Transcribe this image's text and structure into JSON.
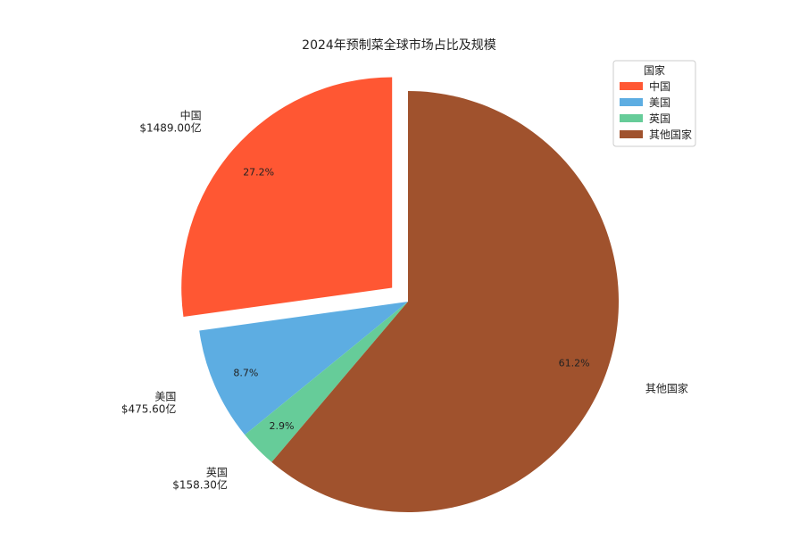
{
  "chart_data": {
    "type": "pie",
    "title": "2024年预制菜全球市场占比及规模",
    "start_angle_deg": 90,
    "direction": "counterclockwise",
    "slices": [
      {
        "label": "中国",
        "value_label": "$1489.00亿",
        "value": 1489.0,
        "percent_label": "27.2%",
        "color": "#FF5733",
        "exploded": true
      },
      {
        "label": "美国",
        "value_label": "$475.60亿",
        "value": 475.6,
        "percent_label": "8.7%",
        "color": "#5DADE2",
        "exploded": false
      },
      {
        "label": "英国",
        "value_label": "$158.30亿",
        "value": 158.3,
        "percent_label": "2.9%",
        "color": "#66CC99",
        "exploded": false
      },
      {
        "label": "其他国家",
        "percent_label": "61.2%",
        "percent": 61.2,
        "color": "#A0522D",
        "exploded": false
      }
    ],
    "legend": {
      "title": "国家",
      "placement": "top-right",
      "entries": [
        "中国",
        "美国",
        "英国",
        "其他国家"
      ]
    }
  }
}
